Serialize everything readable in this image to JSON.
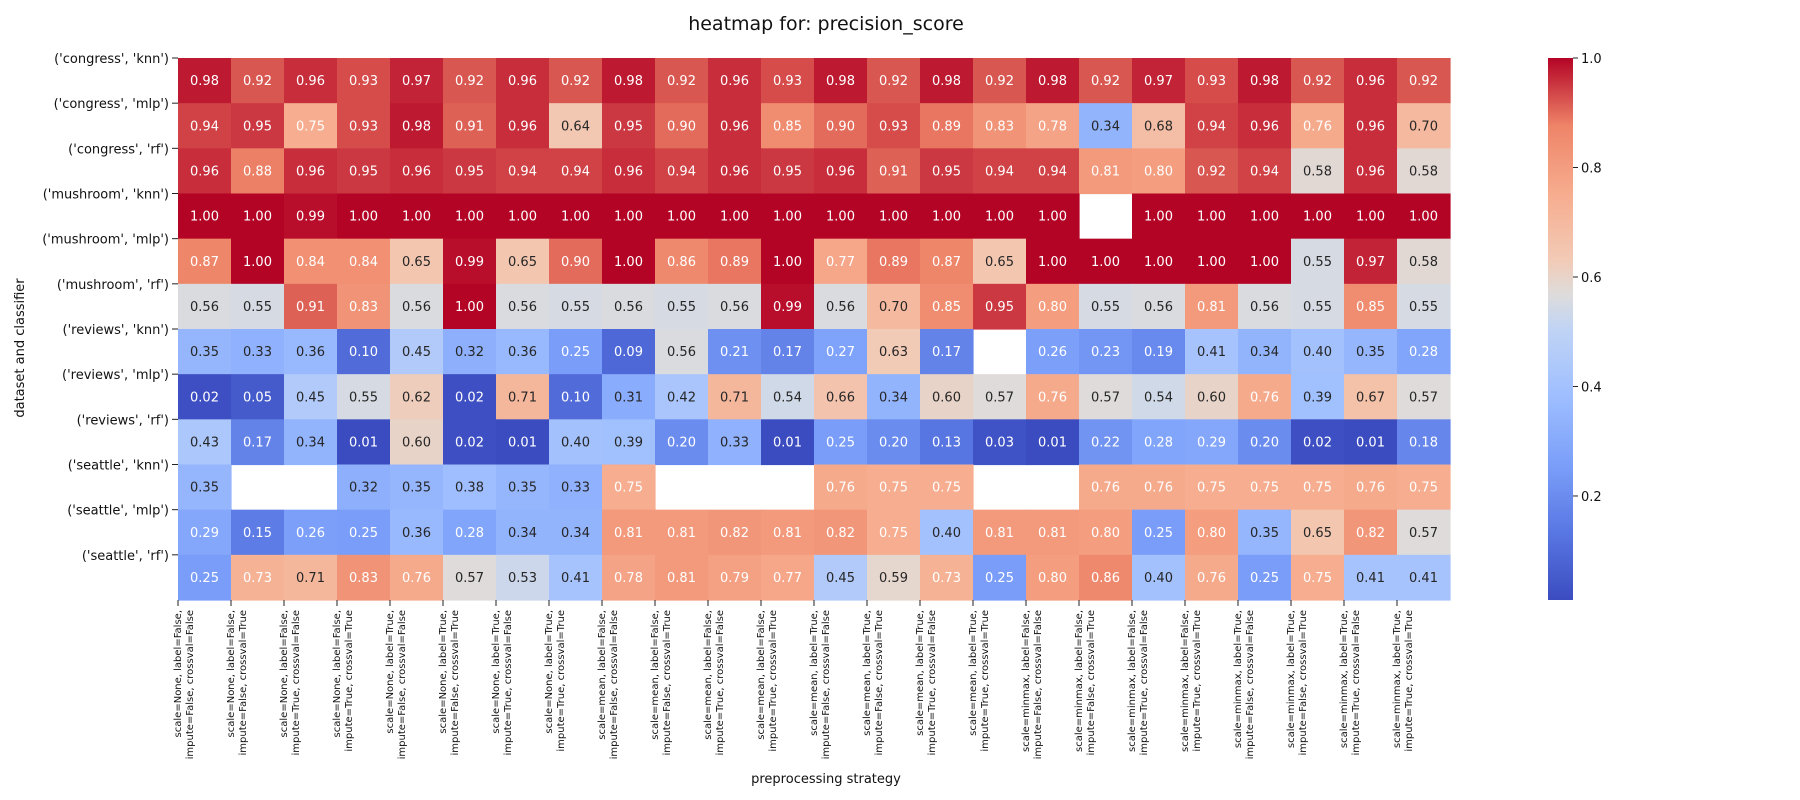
{
  "chart_data": {
    "type": "heatmap",
    "title": "heatmap for: precision_score",
    "xlabel": "preprocessing strategy",
    "ylabel": "dataset and classifier",
    "colormap": "coolwarm",
    "colorbar": {
      "range": [
        0.01,
        1.0
      ],
      "ticks": [
        "0.2",
        "0.4",
        "0.6",
        "0.8",
        "1.0"
      ]
    },
    "y_tick_labels": [
      "('congress', 'knn')",
      "('congress', 'mlp')",
      "('congress', 'rf')",
      "('mushroom', 'knn')",
      "('mushroom', 'mlp')",
      "('mushroom', 'rf')",
      "('reviews', 'knn')",
      "('reviews', 'mlp')",
      "('reviews', 'rf')",
      "('seattle', 'knn')",
      "('seattle', 'mlp')",
      "('seattle', 'rf')"
    ],
    "x_tick_labels": [
      [
        "scale=None, label=False,",
        "impute=False, crossval=False"
      ],
      [
        "scale=None, label=False,",
        "impute=False, crossval=True"
      ],
      [
        "scale=None, label=False,",
        "impute=True, crossval=False"
      ],
      [
        "scale=None, label=False,",
        "impute=True, crossval=True"
      ],
      [
        "scale=None, label=True,",
        "impute=False, crossval=False"
      ],
      [
        "scale=None, label=True,",
        "impute=False, crossval=True"
      ],
      [
        "scale=None, label=True,",
        "impute=True, crossval=False"
      ],
      [
        "scale=None, label=True,",
        "impute=True, crossval=True"
      ],
      [
        "scale=mean, label=False,",
        "impute=False, crossval=False"
      ],
      [
        "scale=mean, label=False,",
        "impute=False, crossval=True"
      ],
      [
        "scale=mean, label=False,",
        "impute=True, crossval=False"
      ],
      [
        "scale=mean, label=False,",
        "impute=True, crossval=True"
      ],
      [
        "scale=mean, label=True,",
        "impute=False, crossval=False"
      ],
      [
        "scale=mean, label=True,",
        "impute=False, crossval=True"
      ],
      [
        "scale=mean, label=True,",
        "impute=True, crossval=False"
      ],
      [
        "scale=mean, label=True,",
        "impute=True, crossval=True"
      ],
      [
        "scale=minmax, label=False,",
        "impute=False, crossval=False"
      ],
      [
        "scale=minmax, label=False,",
        "impute=False, crossval=True"
      ],
      [
        "scale=minmax, label=False,",
        "impute=True, crossval=False"
      ],
      [
        "scale=minmax, label=False,",
        "impute=True, crossval=True"
      ],
      [
        "scale=minmax, label=True,",
        "impute=False, crossval=False"
      ],
      [
        "scale=minmax, label=True,",
        "impute=False, crossval=True"
      ],
      [
        "scale=minmax, label=True,",
        "impute=True, crossval=False"
      ],
      [
        "scale=minmax, label=True,",
        "impute=True, crossval=True"
      ]
    ],
    "values": [
      [
        0.98,
        0.92,
        0.96,
        0.93,
        0.97,
        0.92,
        0.96,
        0.92,
        0.98,
        0.92,
        0.96,
        0.93,
        0.98,
        0.92,
        0.98,
        0.92,
        0.98,
        0.92,
        0.97,
        0.93,
        0.98,
        0.92,
        0.96,
        0.92
      ],
      [
        0.94,
        0.95,
        0.75,
        0.93,
        0.98,
        0.91,
        0.96,
        0.64,
        0.95,
        0.9,
        0.96,
        0.85,
        0.9,
        0.93,
        0.89,
        0.83,
        0.78,
        0.34,
        0.68,
        0.94,
        0.96,
        0.76,
        0.96,
        0.7
      ],
      [
        0.96,
        0.88,
        0.96,
        0.95,
        0.96,
        0.95,
        0.94,
        0.94,
        0.96,
        0.94,
        0.96,
        0.95,
        0.96,
        0.91,
        0.95,
        0.94,
        0.94,
        0.81,
        0.8,
        0.92,
        0.94,
        0.58,
        0.96,
        0.58
      ],
      [
        1.0,
        1.0,
        0.99,
        1.0,
        1.0,
        1.0,
        1.0,
        1.0,
        1.0,
        1.0,
        1.0,
        1.0,
        1.0,
        1.0,
        1.0,
        1.0,
        1.0,
        null,
        1.0,
        1.0,
        1.0,
        1.0,
        1.0,
        1.0
      ],
      [
        0.87,
        1.0,
        0.84,
        0.84,
        0.65,
        0.99,
        0.65,
        0.9,
        1.0,
        0.86,
        0.89,
        1.0,
        0.77,
        0.89,
        0.87,
        0.65,
        1.0,
        1.0,
        1.0,
        1.0,
        1.0,
        0.55,
        0.97,
        0.58
      ],
      [
        0.56,
        0.55,
        0.91,
        0.83,
        0.56,
        1.0,
        0.56,
        0.55,
        0.56,
        0.55,
        0.56,
        0.99,
        0.56,
        0.7,
        0.85,
        0.95,
        0.8,
        0.55,
        0.56,
        0.81,
        0.56,
        0.55,
        0.85,
        0.55
      ],
      [
        0.35,
        0.33,
        0.36,
        0.1,
        0.45,
        0.32,
        0.36,
        0.25,
        0.09,
        0.56,
        0.21,
        0.17,
        0.27,
        0.63,
        0.17,
        null,
        0.26,
        0.23,
        0.19,
        0.41,
        0.34,
        0.4,
        0.35,
        0.28
      ],
      [
        0.02,
        0.05,
        0.45,
        0.55,
        0.62,
        0.02,
        0.71,
        0.1,
        0.31,
        0.42,
        0.71,
        0.54,
        0.66,
        0.34,
        0.6,
        0.57,
        0.76,
        0.57,
        0.54,
        0.6,
        0.76,
        0.39,
        0.67,
        0.57
      ],
      [
        0.43,
        0.17,
        0.34,
        0.01,
        0.6,
        0.02,
        0.01,
        0.4,
        0.39,
        0.2,
        0.33,
        0.01,
        0.25,
        0.2,
        0.13,
        0.03,
        0.01,
        0.22,
        0.28,
        0.29,
        0.2,
        0.02,
        0.01,
        0.18
      ],
      [
        0.35,
        null,
        null,
        0.32,
        0.35,
        0.38,
        0.35,
        0.33,
        0.75,
        null,
        null,
        null,
        0.76,
        0.75,
        0.75,
        null,
        null,
        0.76,
        0.76,
        0.75,
        0.75,
        0.75,
        0.76,
        0.75
      ],
      [
        0.29,
        0.15,
        0.26,
        0.25,
        0.36,
        0.28,
        0.34,
        0.34,
        0.81,
        0.81,
        0.82,
        0.81,
        0.82,
        0.75,
        0.4,
        0.81,
        0.81,
        0.8,
        0.25,
        0.8,
        0.35,
        0.65,
        0.82,
        0.57
      ],
      [
        0.25,
        0.73,
        0.71,
        0.83,
        0.76,
        0.57,
        0.53,
        0.41,
        0.78,
        0.81,
        0.79,
        0.77,
        0.45,
        0.59,
        0.73,
        0.25,
        0.8,
        0.86,
        0.4,
        0.76,
        0.25,
        0.75,
        0.41,
        0.41
      ]
    ]
  }
}
